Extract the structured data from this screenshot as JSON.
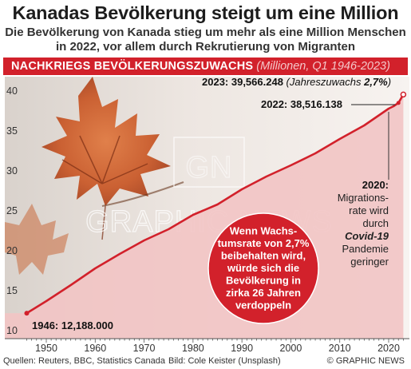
{
  "header": {
    "title": "Kanadas Bevölkerung steigt um eine Million",
    "subtitle_line1": "Die Bevölkerung von Kanada stieg um mehr als eine Million Menschen",
    "subtitle_line2": "in 2022, vor allem durch Rekrutierung von Migranten",
    "banner_main": "NACHKRIEGS BEVÖLKERUNGSZUWACHS",
    "banner_sub": "(Millionen, Q1 1946-2023)"
  },
  "chart_data": {
    "type": "area",
    "x": [
      1946,
      1950,
      1955,
      1960,
      1965,
      1970,
      1975,
      1980,
      1985,
      1990,
      1995,
      2000,
      2005,
      2010,
      2015,
      2020,
      2021,
      2022,
      2023
    ],
    "series": [
      {
        "values": [
          12.188,
          13.7,
          15.7,
          17.8,
          19.6,
          21.3,
          22.7,
          24.5,
          25.8,
          27.7,
          29.3,
          30.7,
          32.2,
          34.0,
          35.7,
          37.8,
          38.1,
          38.516,
          39.566
        ]
      }
    ],
    "xlim": [
      1944,
      2024
    ],
    "ylim": [
      10,
      41
    ],
    "xticks": [
      1950,
      1960,
      1970,
      1980,
      1990,
      2000,
      2010,
      2020
    ],
    "yticks": [
      10,
      15,
      20,
      25,
      30,
      35,
      40
    ],
    "colors": {
      "line": "#d2212b",
      "area": "#f2c4c4",
      "banner": "#d2212b"
    },
    "annotations": {
      "start_label": "1946: 12,188.000",
      "end_2023_label": "2023: 39,566.248",
      "end_2023_growth_text": "(Jahreszuwachs ",
      "end_2023_growth_value": "2,7%",
      "end_2023_growth_close": ")",
      "end_2022_label": "2022: 38,516.138",
      "note_2020_title": "2020:",
      "note_2020_lines": [
        "Migrations-",
        "rate wird",
        "durch"
      ],
      "note_2020_italic": "Covid-19",
      "note_2020_lines2": [
        "Pandemie",
        "geringer"
      ],
      "bubble_lines": [
        "Wenn Wachs-",
        "tumsrate von 2,7%",
        "beibehalten wird,",
        "würde sich die",
        "Bevölkerung in",
        "zirka 26 Jahren",
        "verdoppeln"
      ]
    },
    "watermark": "GRAPHIC NEWS"
  },
  "footer": {
    "source": "Quellen: Reuters, BBC, Statistics Canada",
    "credit": "Bild:   Cole Keister (Unsplash)",
    "copyright": "© GRAPHIC NEWS"
  }
}
